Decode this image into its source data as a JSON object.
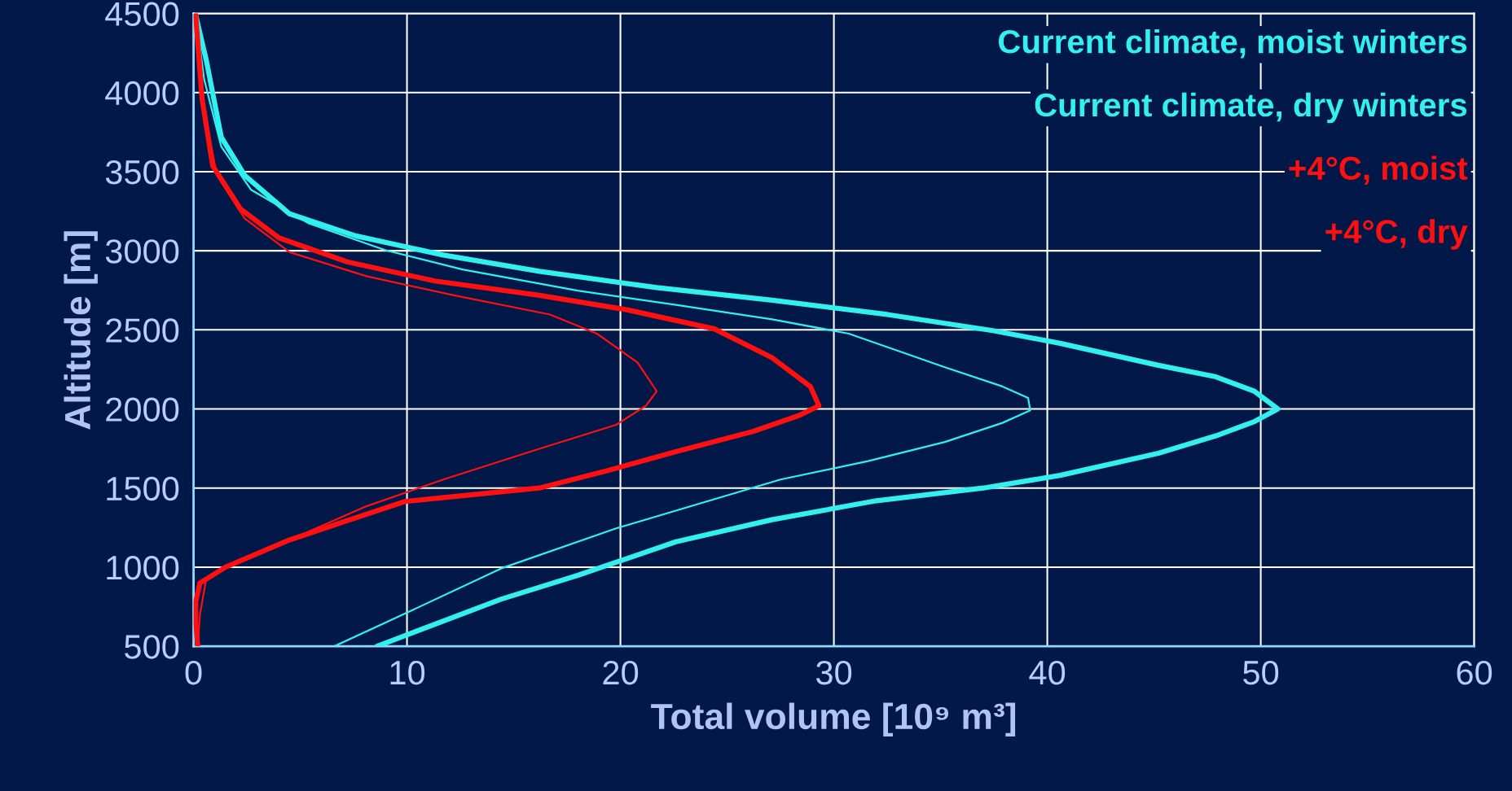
{
  "chart_data": {
    "type": "line",
    "xlabel": "Total volume [10⁹ m³]",
    "ylabel": "Altitude [m]",
    "xlim": [
      0,
      60
    ],
    "xticks": [
      0,
      10,
      20,
      30,
      40,
      50,
      60
    ],
    "ylim": [
      500,
      4500
    ],
    "yticks": [
      500,
      1000,
      1500,
      2000,
      2500,
      3000,
      3500,
      4000,
      4500
    ],
    "grid": true,
    "legend": "top right",
    "marker": "none",
    "line_style": "solid",
    "series": [
      {
        "name": "Current climate, moist winters",
        "color": "#33f0f0",
        "x": [
          8.6,
          9.9,
          14.4,
          18.0,
          22.6,
          27.1,
          32.0,
          37.0,
          40.6,
          45.2,
          47.9,
          49.7,
          50.8,
          49.7,
          47.9,
          45.2,
          40.6,
          37.5,
          32.5,
          27.1,
          21.7,
          16.2,
          11.7,
          7.6,
          4.5,
          2.4,
          1.3,
          0.6,
          0.1
        ],
        "values": [
          500,
          567,
          797,
          948,
          1160,
          1300,
          1420,
          1500,
          1580,
          1720,
          1830,
          1920,
          2000,
          2112,
          2203,
          2276,
          2415,
          2494,
          2597,
          2688,
          2767,
          2870,
          2973,
          3094,
          3233,
          3476,
          3718,
          4203,
          4490
        ]
      },
      {
        "name": "Current climate, dry winters",
        "color": "#33f0f0",
        "x": [
          6.6,
          9.9,
          14.4,
          19.8,
          27.5,
          31.6,
          35.2,
          37.9,
          39.2,
          39.1,
          37.9,
          35.2,
          30.7,
          27.1,
          22.6,
          18.0,
          12.6,
          9.0,
          5.4,
          2.7,
          1.3,
          0.5,
          0.1
        ],
        "values": [
          500,
          706,
          991,
          1245,
          1554,
          1670,
          1791,
          1912,
          1991,
          2070,
          2142,
          2264,
          2476,
          2567,
          2658,
          2748,
          2882,
          3003,
          3173,
          3385,
          3658,
          4082,
          4490
        ]
      },
      {
        "name": "+4°C, moist",
        "color": "#ff1010",
        "x": [
          0.2,
          0.1,
          0.1,
          0.3,
          1.5,
          4.5,
          7.2,
          9.9,
          16.2,
          19.4,
          22.6,
          26.2,
          28.4,
          29.3,
          28.9,
          27.1,
          24.4,
          20.3,
          16.2,
          11.3,
          7.2,
          4.0,
          2.2,
          0.9,
          0.4,
          0.1
        ],
        "values": [
          500,
          650,
          780,
          900,
          1000,
          1172,
          1294,
          1415,
          1500,
          1610,
          1730,
          1857,
          1960,
          2021,
          2142,
          2324,
          2506,
          2627,
          2718,
          2809,
          2930,
          3082,
          3264,
          3536,
          3960,
          4490
        ]
      },
      {
        "name": "+4°C, dry",
        "color": "#ff1010",
        "x": [
          0.2,
          0.3,
          0.6,
          1.8,
          4.0,
          8.1,
          11.7,
          16.2,
          19.8,
          21.2,
          21.7,
          20.8,
          18.9,
          16.7,
          12.2,
          8.1,
          4.5,
          2.4,
          1.1,
          0.4,
          0.1
        ],
        "values": [
          500,
          700,
          930,
          1021,
          1142,
          1385,
          1554,
          1748,
          1900,
          2021,
          2112,
          2294,
          2476,
          2597,
          2718,
          2839,
          2991,
          3203,
          3476,
          3960,
          4490
        ]
      }
    ]
  }
}
